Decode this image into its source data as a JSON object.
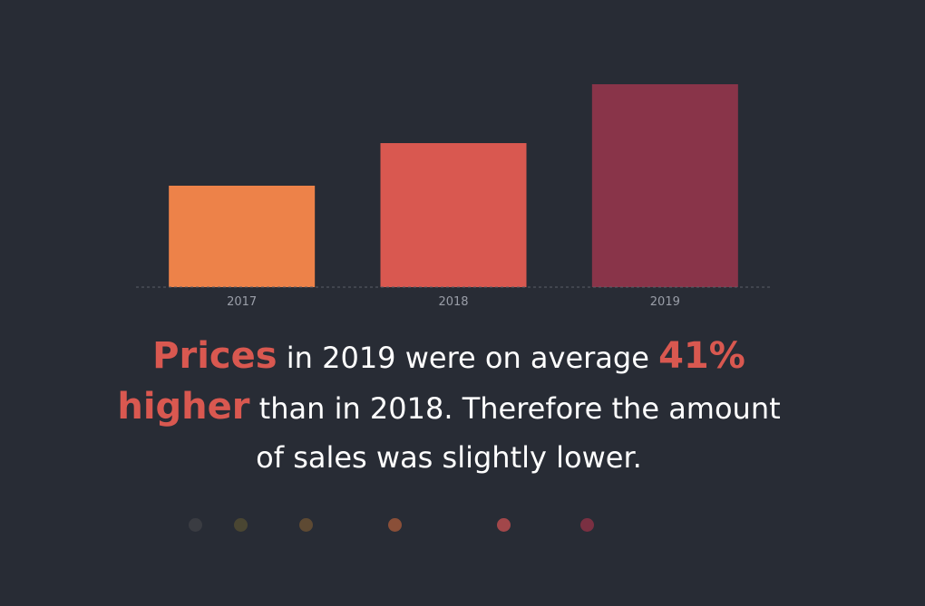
{
  "chart_data": {
    "type": "bar",
    "categories": [
      "2017",
      "2018",
      "2019"
    ],
    "values": [
      112,
      159,
      224
    ],
    "colors": [
      "#ed8249",
      "#d95850",
      "#893449"
    ],
    "ylim": [
      0,
      240
    ],
    "grid": false,
    "legend": "none",
    "baseline": "dashed"
  },
  "headline": {
    "highlight_1": "Prices",
    "text_1": "in 2019 were on average",
    "highlight_2": "41% higher",
    "text_2": "than in 2018. Therefore the amount of sales was slightly lower."
  },
  "pagination": {
    "colors": [
      "#3a3c42",
      "#4a4632",
      "#5e4a33",
      "#8a4f38",
      "#a2474a",
      "#7a3042"
    ]
  }
}
